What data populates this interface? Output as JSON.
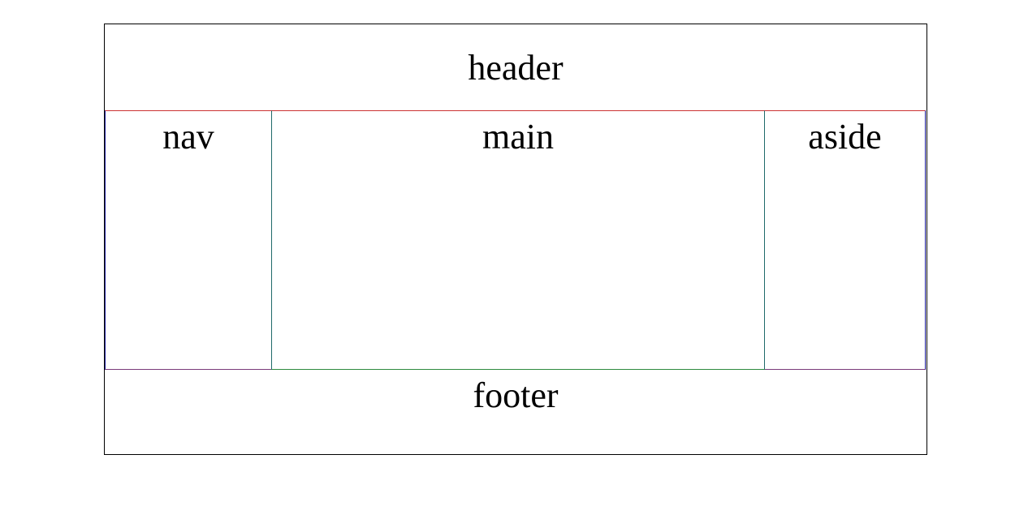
{
  "layout": {
    "header": {
      "label": "header"
    },
    "nav": {
      "label": "nav"
    },
    "main": {
      "label": "main"
    },
    "aside": {
      "label": "aside"
    },
    "footer": {
      "label": "footer"
    }
  },
  "colors": {
    "outer_border": "#000000",
    "row_top_border": "#cc3333",
    "side_borders": "#1a1a99",
    "main_side_borders": "#1f6a6a",
    "main_bottom_border": "#2e8b3e",
    "side_bottom_borders": "#7a3a7a",
    "background": "#ffffff"
  }
}
